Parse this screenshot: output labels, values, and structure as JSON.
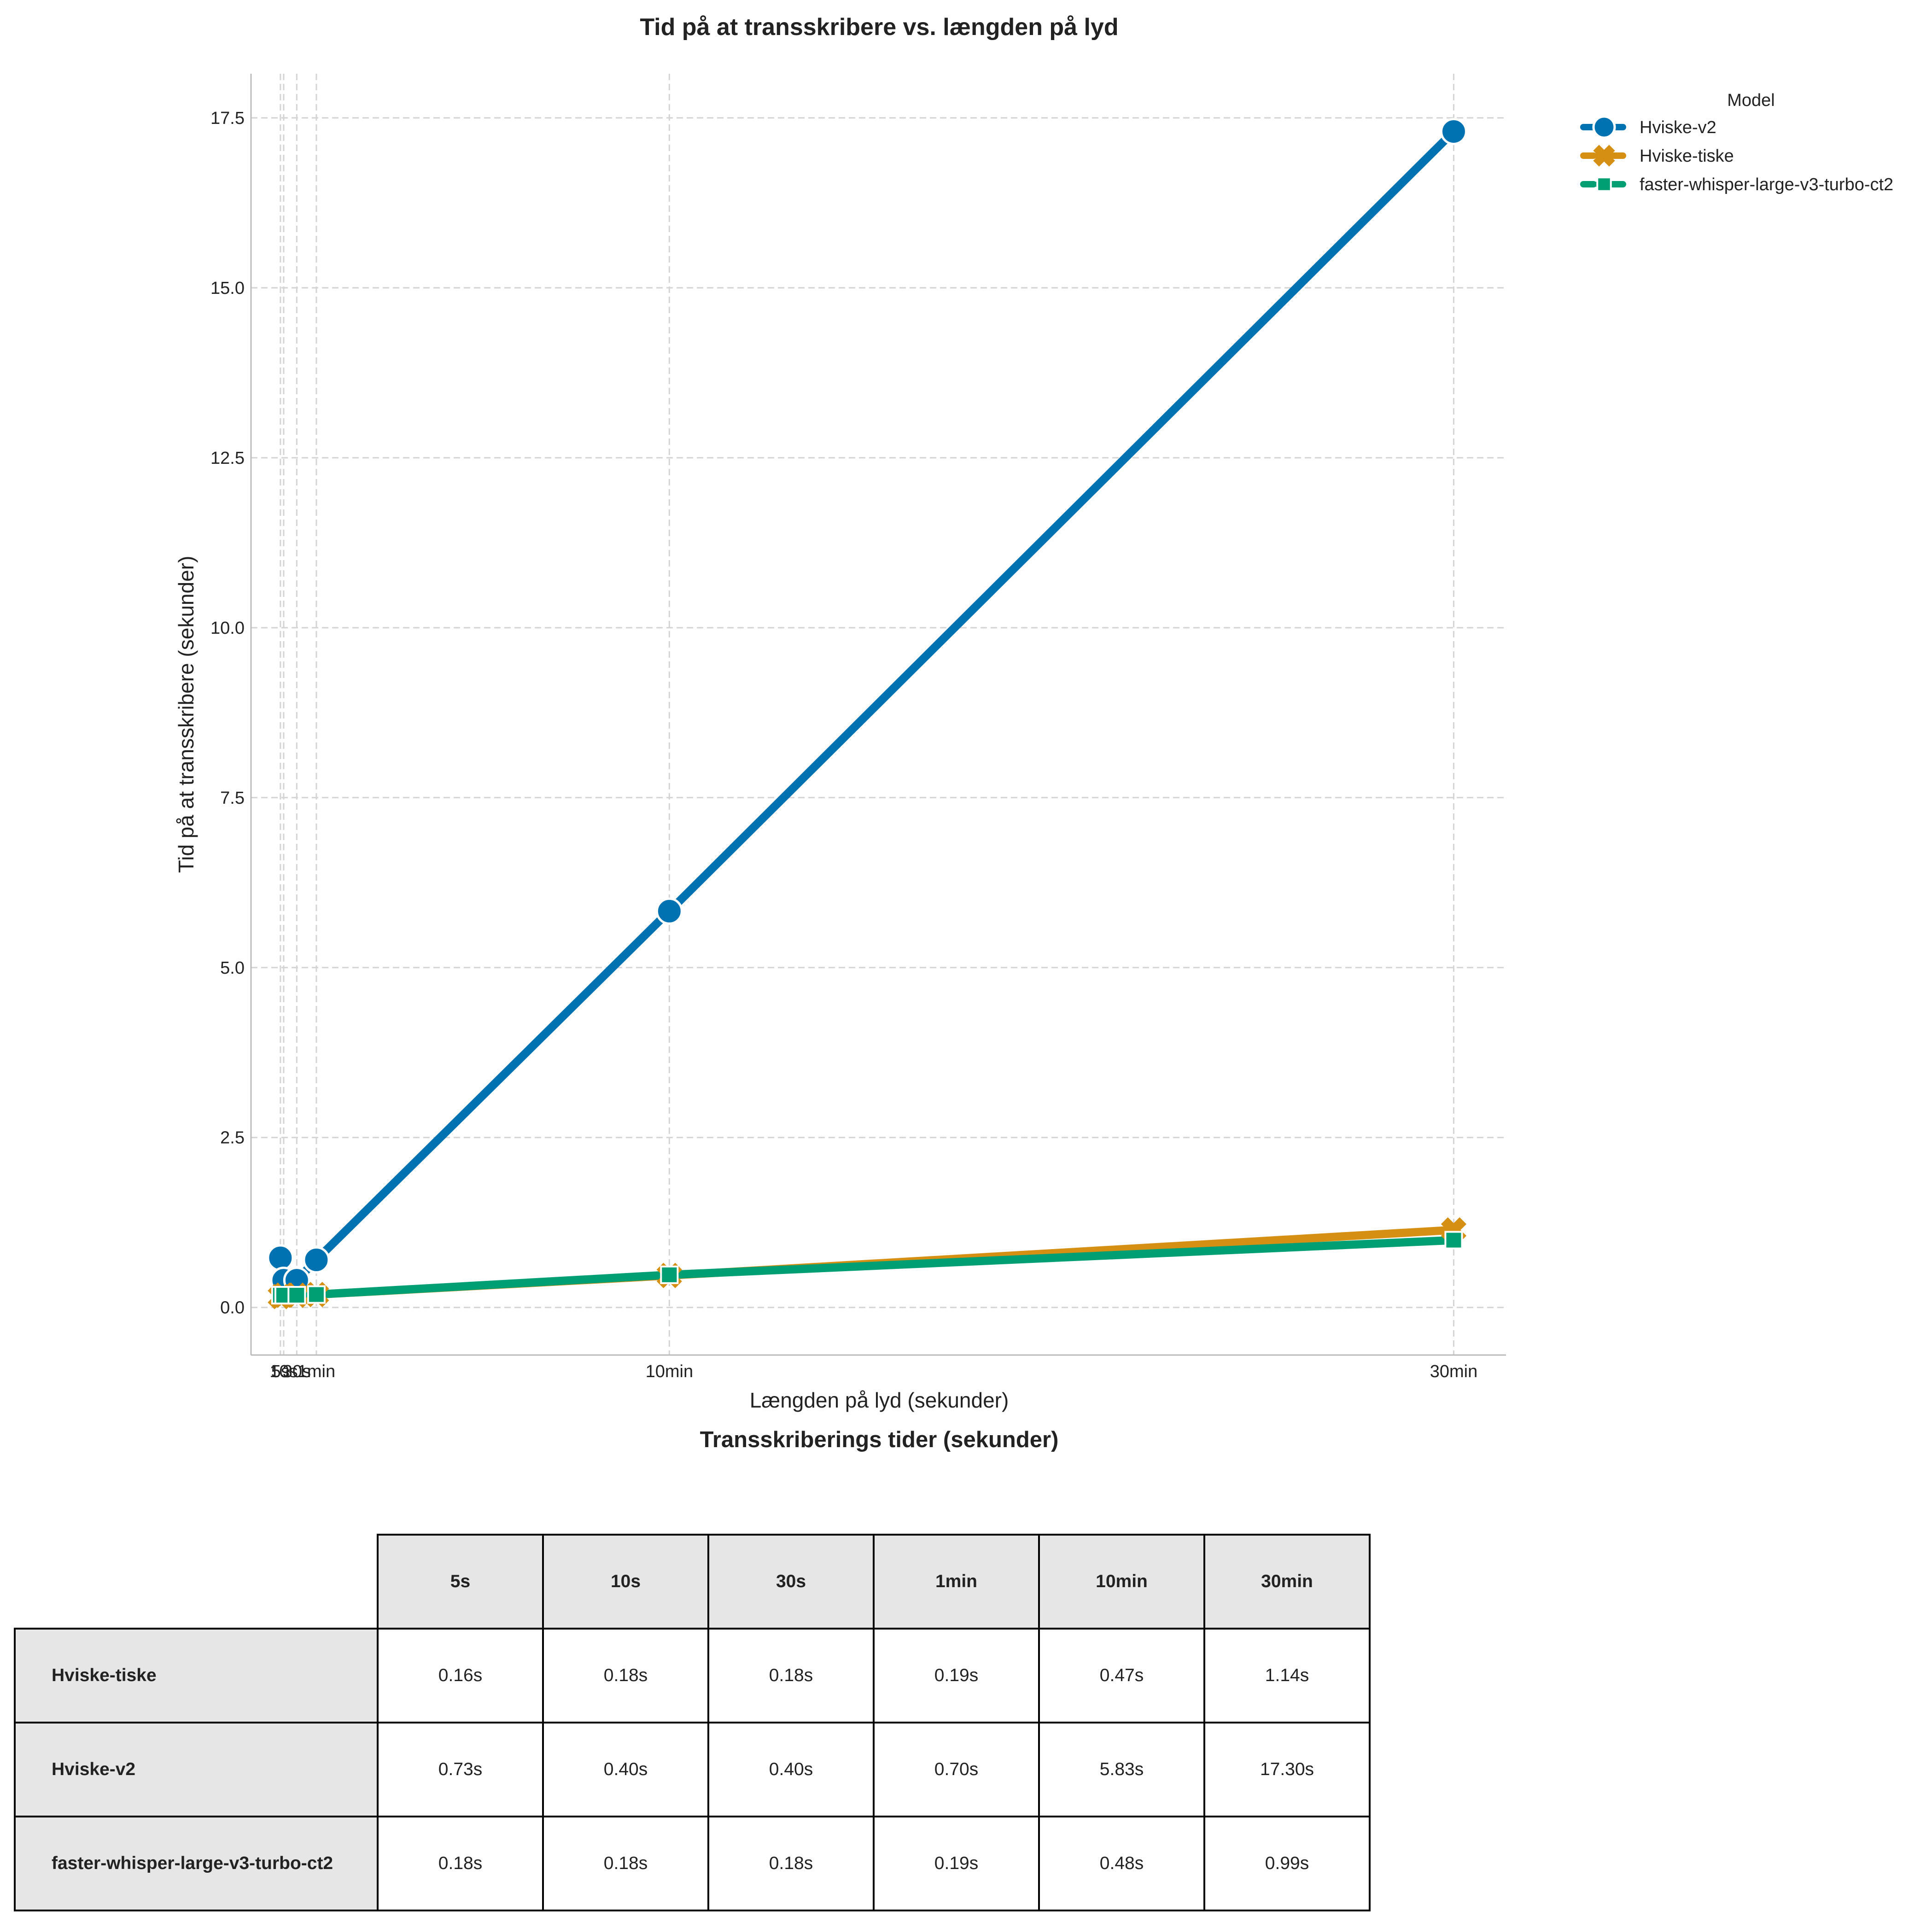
{
  "chart_data": {
    "type": "line",
    "title": "Tid på at transskribere vs. længden på lyd",
    "xlabel": "Længden på lyd (sekunder)",
    "ylabel": "Tid på at transskribere (sekunder)",
    "x": [
      5,
      10,
      30,
      60,
      600,
      1800
    ],
    "xtick_labels": [
      "5s",
      "10s",
      "30s",
      "1min",
      "10min",
      "30min"
    ],
    "xlim": [
      -40,
      1880
    ],
    "ylim": [
      -0.7,
      18.15
    ],
    "yticks": [
      0.0,
      2.5,
      5.0,
      7.5,
      10.0,
      12.5,
      15.0,
      17.5
    ],
    "ytick_labels": [
      "0.0",
      "2.5",
      "5.0",
      "7.5",
      "10.0",
      "12.5",
      "15.0",
      "17.5"
    ],
    "grid": true,
    "legend": {
      "title": "Model",
      "placement": "outside-top-right"
    },
    "series": [
      {
        "name": "Hviske-v2",
        "color": "#0072b2",
        "marker": "circle",
        "values": [
          0.73,
          0.4,
          0.4,
          0.7,
          5.83,
          17.3
        ]
      },
      {
        "name": "Hviske-tiske",
        "color": "#d58f12",
        "marker": "x",
        "values": [
          0.16,
          0.18,
          0.18,
          0.19,
          0.47,
          1.14
        ]
      },
      {
        "name": "faster-whisper-large-v3-turbo-ct2",
        "color": "#009e73",
        "marker": "square",
        "values": [
          0.18,
          0.18,
          0.18,
          0.19,
          0.48,
          0.99
        ]
      }
    ]
  },
  "table": {
    "title": "Transskriberings tider (sekunder)",
    "columns": [
      "5s",
      "10s",
      "30s",
      "1min",
      "10min",
      "30min"
    ],
    "rows": [
      {
        "label": "Hviske-tiske",
        "cells": [
          "0.16s",
          "0.18s",
          "0.18s",
          "0.19s",
          "0.47s",
          "1.14s"
        ]
      },
      {
        "label": "Hviske-v2",
        "cells": [
          "0.73s",
          "0.40s",
          "0.40s",
          "0.70s",
          "5.83s",
          "17.30s"
        ]
      },
      {
        "label": "faster-whisper-large-v3-turbo-ct2",
        "cells": [
          "0.18s",
          "0.18s",
          "0.18s",
          "0.19s",
          "0.48s",
          "0.99s"
        ]
      }
    ]
  }
}
